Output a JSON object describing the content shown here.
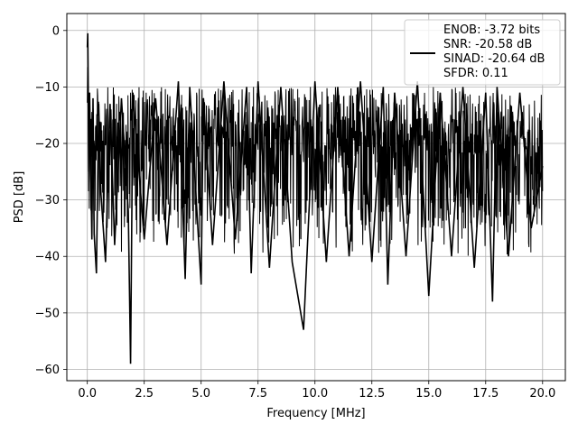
{
  "chart_data": {
    "type": "line",
    "xlabel": "Frequency [MHz]",
    "ylabel": "PSD [dB]",
    "xlim": [
      -0.9,
      21.0
    ],
    "ylim": [
      -62.0,
      3.0
    ],
    "xticks": [
      0.0,
      2.5,
      5.0,
      7.5,
      10.0,
      12.5,
      15.0,
      17.5,
      20.0
    ],
    "xtick_labels": [
      "0.0",
      "2.5",
      "5.0",
      "7.5",
      "10.0",
      "12.5",
      "15.0",
      "17.5",
      "20.0"
    ],
    "yticks": [
      0,
      -10,
      -20,
      -30,
      -40,
      -50,
      -60
    ],
    "ytick_labels": [
      "0",
      "−10",
      "−20",
      "−30",
      "−40",
      "−50",
      "−60"
    ],
    "grid": true,
    "legend_position": "top-right",
    "legend_entries": [
      "ENOB: -3.72 bits",
      "SNR: -20.58 dB",
      "SINAD: -20.64 dB",
      "SFDR: 0.11"
    ],
    "series_color": "#000000",
    "x_range": [
      0.0,
      20.0
    ],
    "series": [
      {
        "x": [
          0.0,
          0.02,
          0.04,
          0.06,
          0.1,
          0.15,
          0.2,
          0.25,
          0.3,
          0.4,
          0.5,
          0.6,
          0.8,
          1.0,
          1.2,
          1.5,
          1.8,
          1.9,
          2.0,
          2.5,
          3.0,
          3.5,
          4.0,
          4.3,
          4.5,
          5.0,
          5.1,
          5.5,
          6.0,
          6.5,
          7.0,
          7.2,
          7.5,
          8.0,
          8.5,
          9.0,
          9.5,
          10.0,
          10.5,
          11.0,
          11.5,
          12.0,
          12.5,
          13.0,
          13.2,
          13.5,
          14.0,
          14.5,
          15.0,
          15.5,
          16.0,
          16.5,
          17.0,
          17.5,
          17.8,
          18.0,
          18.5,
          19.0,
          19.5,
          20.0
        ],
        "y": [
          -3,
          -0.5,
          -10,
          -25,
          -11,
          -24,
          -37,
          -12,
          -36,
          -43,
          -13,
          -29,
          -41,
          -13,
          -38,
          -12,
          -32,
          -59,
          -11,
          -37,
          -12,
          -38,
          -9,
          -44,
          -10,
          -45,
          -12,
          -38,
          -9,
          -37,
          -10,
          -43,
          -9,
          -42,
          -10,
          -41,
          -53,
          -9,
          -41,
          -10,
          -40,
          -9,
          -41,
          -10,
          -45,
          -11,
          -40,
          -9,
          -47,
          -11,
          -40,
          -10,
          -42,
          -11,
          -48,
          -10,
          -40,
          -11,
          -35,
          -24
        ]
      }
    ]
  }
}
